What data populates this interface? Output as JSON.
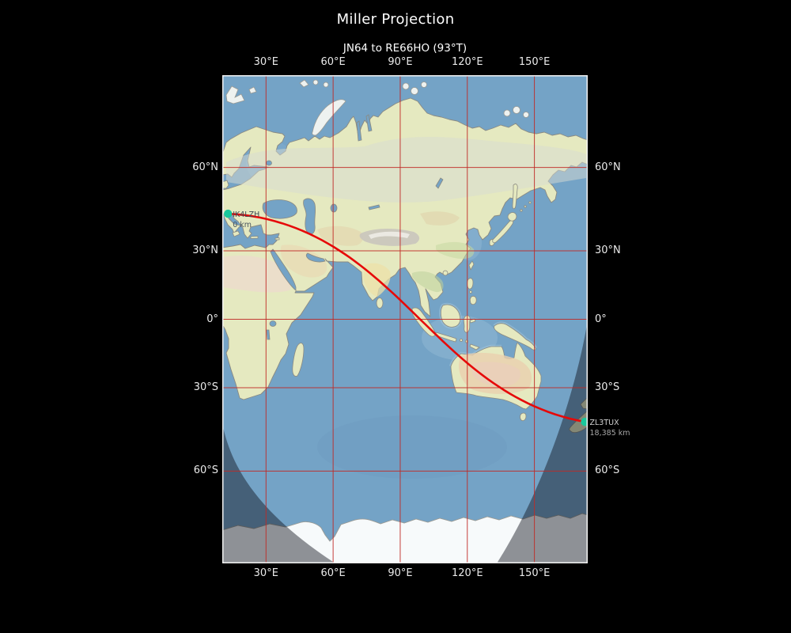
{
  "figure": {
    "title": "Miller Projection",
    "subtitle": "JN64 to RE66HO (93°T)",
    "background": "#000000"
  },
  "map": {
    "frame_color": "#f2f2f2",
    "grid_color": "#c02a26",
    "ocean_color": "#74a3c6",
    "land_color": "#e5e9c0",
    "night_overlay": "rgba(8,12,20,0.44)",
    "tick_label_color": "#eaeaea"
  },
  "axes": {
    "top": [
      "30°E",
      "60°E",
      "90°E",
      "120°E",
      "150°E"
    ],
    "bottom": [
      "30°E",
      "60°E",
      "90°E",
      "120°E",
      "150°E"
    ],
    "left": [
      "60°N",
      "30°N",
      "0°",
      "30°S",
      "60°S"
    ],
    "right": [
      "60°N",
      "30°N",
      "0°",
      "30°S",
      "60°S"
    ]
  },
  "route": {
    "color": "#e60909",
    "marker_color": "#19c79c",
    "bearing": "93°T",
    "start": {
      "callsign": "IK4LZH",
      "distance": "0 km",
      "lon": 13.0,
      "lat": 44.5,
      "callsign_color": "#3e4a54",
      "distance_color": "#4a565f"
    },
    "end": {
      "callsign": "ZL3TUX",
      "distance": "18,385 km",
      "lon": 172.6,
      "lat": -43.4,
      "callsign_color": "#d2d2d2",
      "distance_color": "#a8a8a8"
    }
  },
  "chart_data": {
    "type": "map-route",
    "projection": "Miller",
    "title": "Miller Projection",
    "subtitle": "JN64 to RE66HO (93°T)",
    "lon_range": [
      10.4,
      173.9
    ],
    "lat_range": [
      -82.3,
      82.3
    ],
    "gridlines_lon": [
      30,
      60,
      90,
      120,
      150
    ],
    "gridlines_lat": [
      60,
      30,
      0,
      -30,
      -60
    ],
    "grid_on": true,
    "distance_km": 18385,
    "bearing_deg": 93,
    "route_endpoints": [
      [
        13.0,
        44.5
      ],
      [
        172.6,
        -43.4
      ]
    ],
    "route_waypoints": [
      [
        13.0,
        44.5
      ],
      [
        35.3,
        41.4
      ],
      [
        54.4,
        34.6
      ],
      [
        70.3,
        25.3
      ],
      [
        83.6,
        14.5
      ],
      [
        95.7,
        3.1
      ],
      [
        107.6,
        -8.5
      ],
      [
        120.2,
        -19.7
      ],
      [
        134.5,
        -29.8
      ],
      [
        151.8,
        -38.1
      ],
      [
        172.6,
        -43.4
      ]
    ]
  }
}
